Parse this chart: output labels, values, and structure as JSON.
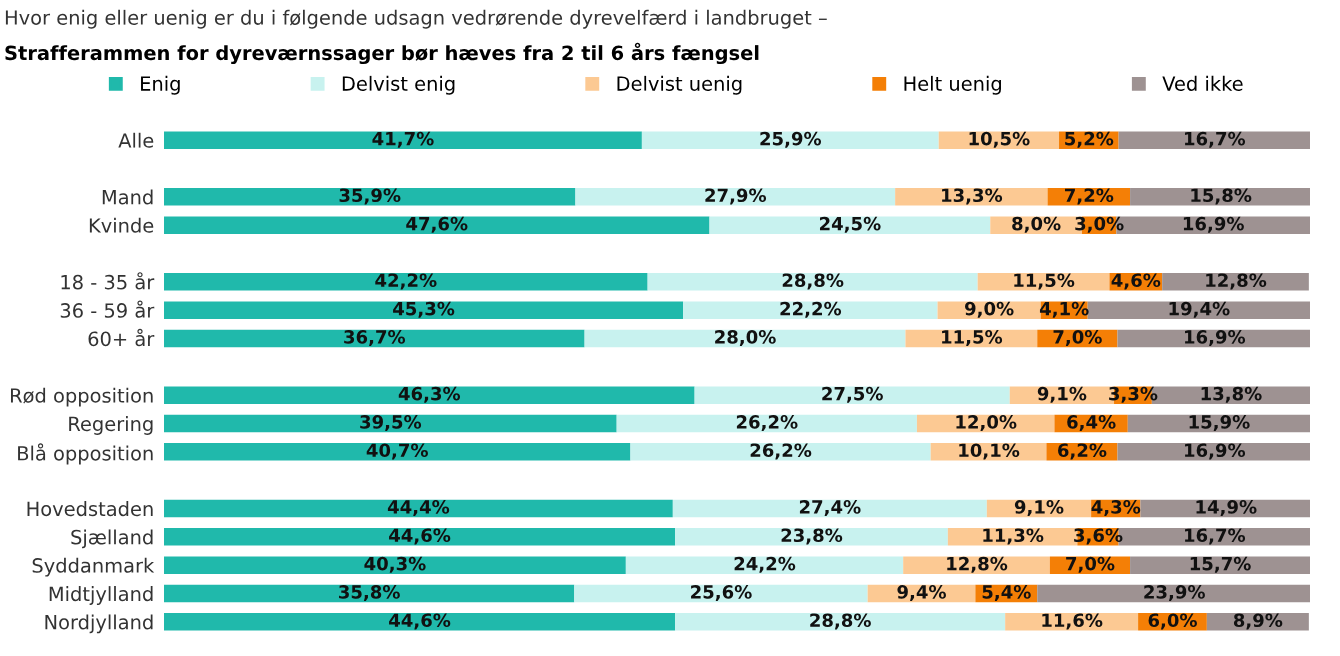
{
  "chart_data": {
    "type": "bar",
    "orientation": "horizontal",
    "stacked": true,
    "title": "Hvor enig eller uenig er du i følgende udsagn vedrørende dyrevelfærd i landbruget –",
    "subtitle": "Strafferammen for dyreværnssager bør hæves fra 2 til 6 års fængsel",
    "categories": [
      "Alle",
      null,
      "Mand",
      "Kvinde",
      null,
      "18 - 35 år",
      "36 - 59 år",
      "60+ år",
      null,
      "Rød opposition",
      "Regering",
      "Blå opposition",
      null,
      "Hovedstaden",
      "Sjælland",
      "Syddanmark",
      "Midtjylland",
      "Nordjylland"
    ],
    "xlim": [
      0,
      100
    ],
    "tick_labels": "y",
    "grid": false,
    "legend": "top",
    "series": [
      {
        "name": "Enig",
        "color": "#20b9ab",
        "values": [
          41.7,
          null,
          35.9,
          47.6,
          null,
          42.2,
          45.3,
          36.7,
          null,
          46.3,
          39.5,
          40.7,
          null,
          44.4,
          44.6,
          40.3,
          35.8,
          44.6
        ],
        "value_labels": [
          "41,7%",
          null,
          "35,9%",
          "47,6%",
          null,
          "42,2%",
          "45,3%",
          "36,7%",
          null,
          "46,3%",
          "39,5%",
          "40,7%",
          null,
          "44,4%",
          "44,6%",
          "40,3%",
          "35,8%",
          "44,6%"
        ]
      },
      {
        "name": "Delvist enig",
        "color": "#c8f2ef",
        "values": [
          25.9,
          null,
          27.9,
          24.5,
          null,
          28.8,
          22.2,
          28.0,
          null,
          27.5,
          26.2,
          26.2,
          null,
          27.4,
          23.8,
          24.2,
          25.6,
          28.8
        ],
        "value_labels": [
          "25,9%",
          null,
          "27,9%",
          "24,5%",
          null,
          "28,8%",
          "22,2%",
          "28,0%",
          null,
          "27,5%",
          "26,2%",
          "26,2%",
          null,
          "27,4%",
          "23,8%",
          "24,2%",
          "25,6%",
          "28,8%"
        ]
      },
      {
        "name": "Delvist uenig",
        "color": "#fcc993",
        "values": [
          10.5,
          null,
          13.3,
          8.0,
          null,
          11.5,
          9.0,
          11.5,
          null,
          9.1,
          12.0,
          10.1,
          null,
          9.1,
          11.3,
          12.8,
          9.4,
          11.6
        ],
        "value_labels": [
          "10,5%",
          null,
          "13,3%",
          "8,0%",
          null,
          "11,5%",
          "9,0%",
          "11,5%",
          null,
          "9,1%",
          "12,0%",
          "10,1%",
          null,
          "9,1%",
          "11,3%",
          "12,8%",
          "9,4%",
          "11,6%"
        ]
      },
      {
        "name": "Helt uenig",
        "color": "#f47f06",
        "values": [
          5.2,
          null,
          7.2,
          3.0,
          null,
          4.6,
          4.1,
          7.0,
          null,
          3.3,
          6.4,
          6.2,
          null,
          4.3,
          3.6,
          7.0,
          5.4,
          6.0
        ],
        "value_labels": [
          "5,2%",
          null,
          "7,2%",
          "3,0%",
          null,
          "4,6%",
          "4,1%",
          "7,0%",
          null,
          "3,3%",
          "6,4%",
          "6,2%",
          null,
          "4,3%",
          "3,6%",
          "7,0%",
          "5,4%",
          "6,0%"
        ]
      },
      {
        "name": "Ved ikke",
        "color": "#9e9292",
        "values": [
          16.7,
          null,
          15.8,
          16.9,
          null,
          12.8,
          19.4,
          16.9,
          null,
          13.8,
          15.9,
          16.9,
          null,
          14.9,
          16.7,
          15.7,
          23.9,
          8.9
        ],
        "value_labels": [
          "16,7%",
          null,
          "15,8%",
          "16,9%",
          null,
          "12,8%",
          "19,4%",
          "16,9%",
          null,
          "13,8%",
          "15,9%",
          "16,9%",
          null,
          "14,9%",
          "16,7%",
          "15,7%",
          "23,9%",
          "8,9%"
        ]
      }
    ]
  }
}
